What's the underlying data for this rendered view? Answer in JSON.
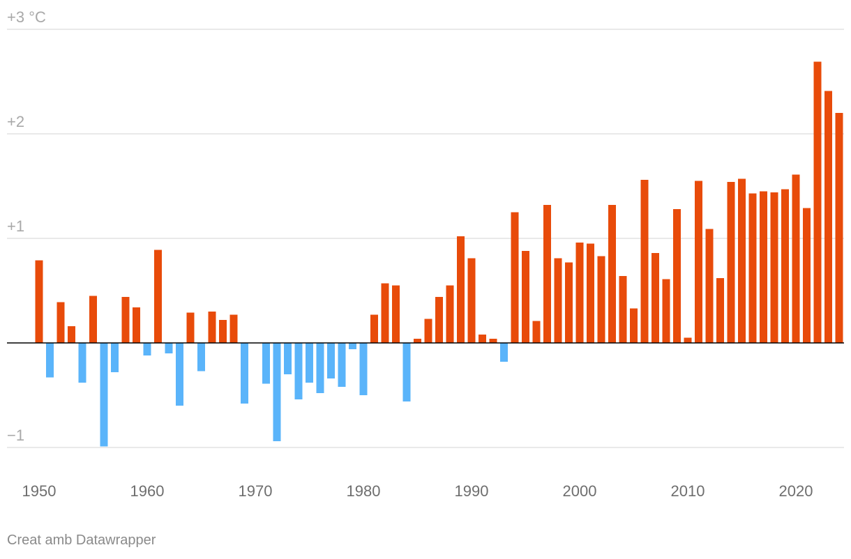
{
  "credit": "Creat amb Datawrapper",
  "colors": {
    "positive": "#e84b0a",
    "negative": "#5ab4fa",
    "grid": "#e2e2e2",
    "zero_line": "#000000"
  },
  "chart_data": {
    "type": "bar",
    "x": [
      1950,
      1951,
      1952,
      1953,
      1954,
      1955,
      1956,
      1957,
      1958,
      1959,
      1960,
      1961,
      1962,
      1963,
      1964,
      1965,
      1966,
      1967,
      1968,
      1969,
      1970,
      1971,
      1972,
      1973,
      1974,
      1975,
      1976,
      1977,
      1978,
      1979,
      1980,
      1981,
      1982,
      1983,
      1984,
      1985,
      1986,
      1987,
      1988,
      1989,
      1990,
      1991,
      1992,
      1993,
      1994,
      1995,
      1996,
      1997,
      1998,
      1999,
      2000,
      2001,
      2002,
      2003,
      2004,
      2005,
      2006,
      2007,
      2008,
      2009,
      2010,
      2011,
      2012,
      2013,
      2014,
      2015,
      2016,
      2017,
      2018,
      2019,
      2020,
      2021,
      2022,
      2023,
      2024
    ],
    "values": [
      0.79,
      -0.33,
      0.39,
      0.16,
      -0.38,
      0.45,
      -0.99,
      -0.28,
      0.44,
      0.34,
      -0.12,
      0.89,
      -0.1,
      -0.6,
      0.29,
      -0.27,
      0.3,
      0.22,
      0.27,
      -0.58,
      0.0,
      -0.39,
      -0.94,
      -0.3,
      -0.54,
      -0.38,
      -0.48,
      -0.34,
      -0.42,
      -0.06,
      -0.5,
      0.27,
      0.57,
      0.55,
      -0.56,
      0.04,
      0.23,
      0.44,
      0.55,
      1.02,
      0.81,
      0.08,
      0.04,
      -0.18,
      1.25,
      0.88,
      0.21,
      1.32,
      0.81,
      0.77,
      0.96,
      0.95,
      0.83,
      1.32,
      0.64,
      0.33,
      1.56,
      0.86,
      0.61,
      1.28,
      0.05,
      1.55,
      1.09,
      0.62,
      1.54,
      1.57,
      1.43,
      1.45,
      1.44,
      1.47,
      1.61,
      1.29,
      2.69,
      2.41,
      2.2
    ],
    "yticks": [
      {
        "value": 3,
        "label": "+3 °C"
      },
      {
        "value": 2,
        "label": "+2"
      },
      {
        "value": 1,
        "label": "+1"
      },
      {
        "value": -1,
        "label": "−1"
      }
    ],
    "xticks": [
      1950,
      1960,
      1970,
      1980,
      1990,
      2000,
      2010,
      2020
    ],
    "ylim": [
      -1,
      3
    ],
    "xlim": [
      1950,
      2024
    ],
    "grid": "horizontal",
    "legend": "none",
    "title": "",
    "xlabel": "",
    "ylabel": ""
  }
}
